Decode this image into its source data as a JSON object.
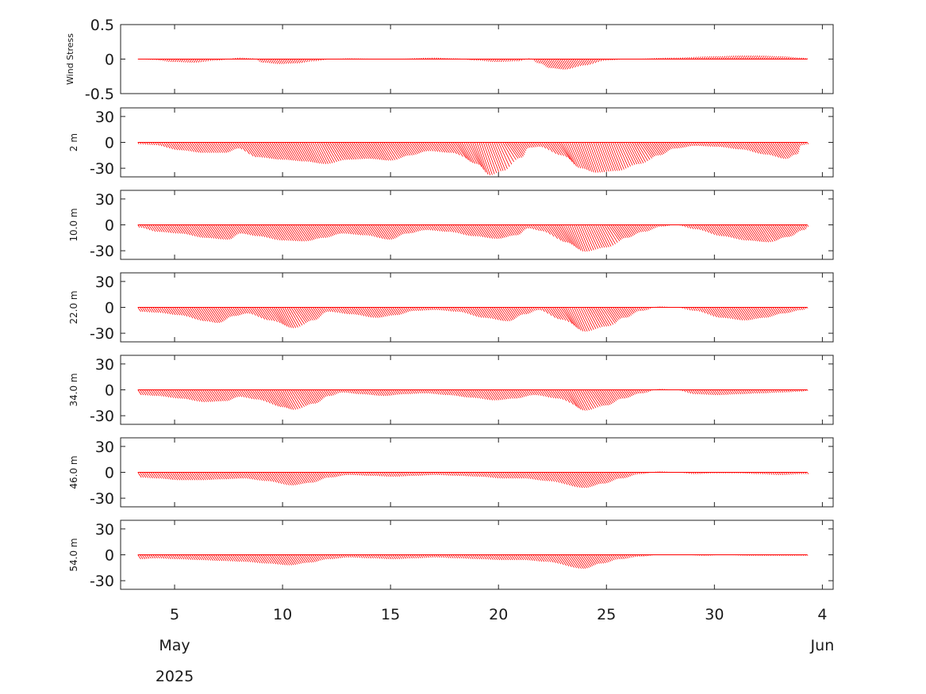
{
  "chart_data": {
    "type": "line",
    "description_style": "stick-vector time series",
    "x_axis": {
      "tick_labels": [
        "5",
        "10",
        "15",
        "20",
        "25",
        "30",
        "4"
      ],
      "tick_days": [
        5,
        10,
        15,
        20,
        25,
        30,
        35
      ],
      "xlim_days": [
        2.5,
        35.5
      ],
      "month_labels": [
        "May",
        "Jun"
      ],
      "month_label_days": [
        5,
        35
      ],
      "year_label": "2025",
      "year_label_day": 5
    },
    "vector_color": "#ff0000",
    "panels": [
      {
        "ylabel": "Wind Stress",
        "ylim": [
          -0.5,
          0.5
        ],
        "yticks": [
          0.5,
          0,
          -0.5
        ],
        "ytick_labels": [
          "0.5",
          "0",
          "-0.5"
        ],
        "series_t": [
          3.3,
          4.0,
          5.0,
          6.0,
          7.0,
          8.0,
          8.6,
          9.2,
          10.0,
          10.8,
          11.5,
          12.3,
          13.0,
          15.0,
          17.0,
          18.0,
          19.0,
          20.0,
          21.0,
          21.4,
          22.0,
          22.7,
          23.4,
          24.2,
          25.0,
          26.0,
          28.0,
          30.0,
          31.0,
          32.0,
          33.0,
          34.0,
          34.3
        ],
        "series_v": [
          0.0,
          -0.01,
          -0.04,
          -0.05,
          -0.02,
          0.02,
          0.01,
          -0.05,
          -0.07,
          -0.06,
          -0.03,
          0.0,
          0.01,
          0.0,
          0.02,
          0.01,
          -0.02,
          -0.04,
          -0.03,
          0.01,
          -0.06,
          -0.13,
          -0.15,
          -0.09,
          -0.02,
          0.0,
          0.02,
          0.04,
          0.05,
          0.05,
          0.04,
          0.02,
          0.01
        ]
      },
      {
        "ylabel": "2 m",
        "ylim": [
          -40,
          40
        ],
        "yticks": [
          30,
          0,
          -30
        ],
        "ytick_labels": [
          "30",
          "0",
          "-30"
        ],
        "series_t": [
          3.3,
          4.0,
          5.0,
          6.0,
          7.0,
          7.8,
          8.3,
          9.5,
          10.5,
          11.5,
          12.5,
          13.5,
          14.5,
          15.5,
          16.5,
          17.5,
          18.5,
          19.1,
          19.7,
          20.5,
          21.3,
          21.8,
          22.5,
          23.3,
          24.0,
          25.0,
          26.0,
          27.0,
          28.0,
          29.0,
          30.0,
          31.0,
          32.0,
          32.8,
          33.4,
          34.0,
          34.3
        ],
        "series_v": [
          -2,
          -3,
          -9,
          -12,
          -12,
          -7,
          -17,
          -20,
          -22,
          -25,
          -20,
          -19,
          -21,
          -15,
          -10,
          -12,
          -25,
          -38,
          -33,
          -18,
          -6,
          -5,
          -15,
          -30,
          -35,
          -33,
          -25,
          -15,
          -7,
          -4,
          -5,
          -8,
          -14,
          -19,
          -14,
          -3,
          -2
        ]
      },
      {
        "ylabel": "10.0 m",
        "ylim": [
          -40,
          40
        ],
        "yticks": [
          30,
          0,
          -30
        ],
        "ytick_labels": [
          "30",
          "0",
          "-30"
        ],
        "series_t": [
          3.3,
          4.0,
          5.0,
          6.0,
          7.0,
          7.8,
          8.5,
          9.5,
          10.5,
          11.5,
          12.5,
          13.5,
          14.5,
          15.5,
          16.5,
          17.5,
          18.5,
          19.5,
          20.5,
          21.3,
          21.8,
          22.6,
          23.5,
          24.5,
          25.5,
          26.5,
          27.5,
          28.2,
          29.0,
          30.0,
          31.0,
          32.0,
          33.0,
          34.0,
          34.3
        ],
        "series_v": [
          -3,
          -8,
          -10,
          -15,
          -17,
          -10,
          -13,
          -18,
          -19,
          -15,
          -10,
          -12,
          -17,
          -10,
          -6,
          -8,
          -13,
          -16,
          -12,
          -4,
          -7,
          -20,
          -31,
          -26,
          -15,
          -8,
          -2,
          0,
          -5,
          -13,
          -18,
          -20,
          -14,
          -6,
          -2
        ]
      },
      {
        "ylabel": "22.0 m",
        "ylim": [
          -40,
          40
        ],
        "yticks": [
          30,
          0,
          -30
        ],
        "ytick_labels": [
          "30",
          "0",
          "-30"
        ],
        "series_t": [
          3.3,
          4.0,
          5.0,
          6.0,
          6.5,
          7.5,
          8.2,
          9.0,
          10.0,
          11.0,
          12.0,
          13.0,
          14.0,
          15.0,
          16.0,
          17.0,
          18.0,
          19.0,
          20.0,
          21.0,
          21.8,
          22.5,
          23.5,
          24.5,
          25.5,
          26.5,
          27.5,
          28.2,
          29.0,
          30.0,
          31.0,
          32.0,
          33.0,
          34.0,
          34.3
        ],
        "series_v": [
          -5,
          -6,
          -9,
          -16,
          -18,
          -10,
          -7,
          -15,
          -24,
          -15,
          -5,
          -8,
          -12,
          -9,
          -4,
          -3,
          -5,
          -12,
          -16,
          -8,
          -3,
          -14,
          -28,
          -22,
          -12,
          -4,
          1,
          0,
          -4,
          -12,
          -15,
          -12,
          -7,
          -3,
          -1
        ]
      },
      {
        "ylabel": "34.0 m",
        "ylim": [
          -40,
          40
        ],
        "yticks": [
          30,
          0,
          -30
        ],
        "ytick_labels": [
          "30",
          "0",
          "-30"
        ],
        "series_t": [
          3.3,
          4.0,
          5.0,
          6.0,
          7.0,
          7.8,
          8.5,
          9.5,
          10.0,
          11.0,
          12.0,
          12.7,
          13.5,
          14.5,
          15.5,
          16.5,
          17.5,
          18.5,
          19.5,
          20.5,
          21.5,
          22.5,
          23.5,
          24.5,
          25.5,
          26.5,
          27.5,
          28.2,
          29.0,
          30.0,
          31.0,
          32.0,
          33.0,
          34.0,
          34.3
        ],
        "series_v": [
          -6,
          -7,
          -10,
          -14,
          -13,
          -8,
          -11,
          -20,
          -23,
          -16,
          -7,
          -3,
          -5,
          -7,
          -5,
          -4,
          -6,
          -9,
          -12,
          -10,
          -6,
          -10,
          -24,
          -18,
          -10,
          -4,
          1,
          0,
          -5,
          -6,
          -5,
          -4,
          -3,
          -2,
          -1
        ]
      },
      {
        "ylabel": "46.0 m",
        "ylim": [
          -40,
          40
        ],
        "yticks": [
          30,
          0,
          -30
        ],
        "ytick_labels": [
          "30",
          "0",
          "-30"
        ],
        "series_t": [
          3.3,
          4.0,
          5.0,
          6.0,
          7.0,
          8.0,
          9.0,
          10.0,
          11.0,
          12.0,
          13.0,
          14.0,
          15.0,
          16.0,
          17.0,
          18.0,
          19.0,
          20.0,
          21.0,
          22.0,
          23.5,
          24.5,
          25.5,
          26.5,
          27.5,
          28.3,
          29.0,
          30.0,
          31.0,
          32.0,
          33.0,
          34.0,
          34.3
        ],
        "series_v": [
          -6,
          -7,
          -9,
          -9,
          -8,
          -7,
          -10,
          -15,
          -12,
          -6,
          -3,
          -4,
          -5,
          -4,
          -3,
          -4,
          -5,
          -7,
          -7,
          -10,
          -18,
          -13,
          -7,
          -2,
          1,
          0,
          -2,
          -1,
          -1,
          -2,
          -3,
          -2,
          -2
        ]
      },
      {
        "ylabel": "54.0 m",
        "ylim": [
          -40,
          40
        ],
        "yticks": [
          30,
          0,
          -30
        ],
        "ytick_labels": [
          "30",
          "0",
          "-30"
        ],
        "series_t": [
          3.3,
          4.0,
          5.0,
          6.0,
          7.0,
          8.0,
          9.0,
          10.0,
          11.0,
          12.0,
          13.0,
          14.0,
          15.0,
          16.0,
          17.0,
          18.0,
          19.0,
          20.0,
          21.0,
          22.0,
          23.5,
          24.5,
          25.5,
          26.5,
          27.5,
          28.5,
          29.5,
          30.5,
          31.5,
          32.5,
          33.5,
          34.0,
          34.3
        ],
        "series_v": [
          -5,
          -4,
          -5,
          -6,
          -7,
          -8,
          -10,
          -12,
          -9,
          -5,
          -3,
          -4,
          -5,
          -4,
          -3,
          -4,
          -5,
          -6,
          -6,
          -8,
          -16,
          -10,
          -5,
          -2,
          0,
          0,
          -1,
          0,
          -1,
          -1,
          -1,
          -1,
          -1
        ]
      }
    ]
  }
}
